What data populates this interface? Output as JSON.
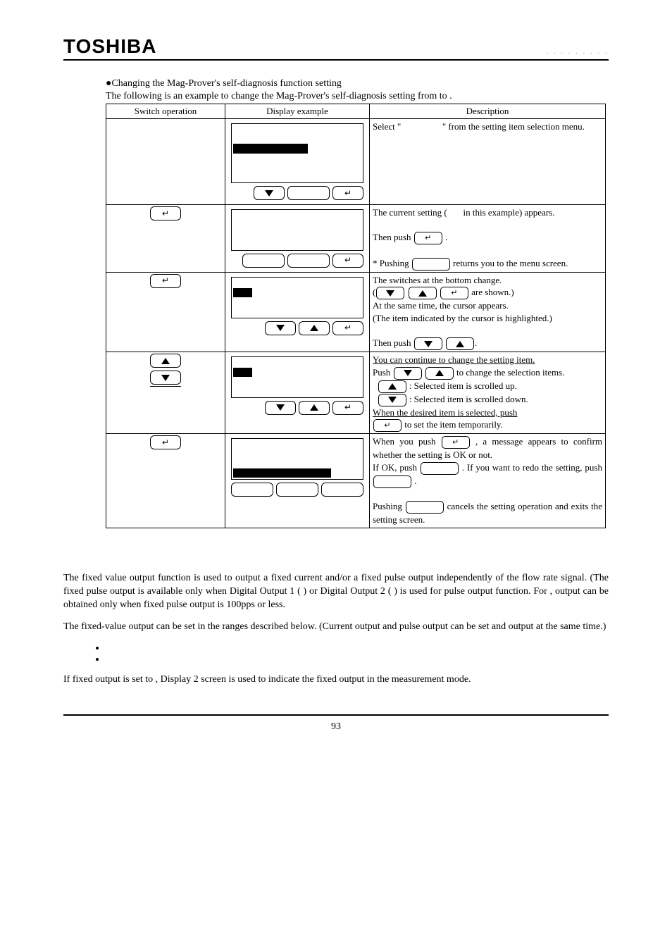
{
  "header": {
    "logo": "TOSHIBA",
    "doc_code": "· · · · · · · · ·"
  },
  "intro": {
    "bullet": "●Changing the Mag-Prover's self-diagnosis function setting",
    "example_line": "The following is an example to change the Mag-Prover's self-diagnosis setting from        to     ."
  },
  "table": {
    "headers": {
      "switch": "Switch operation",
      "display": "Display example",
      "desc": "Description"
    },
    "rows": [
      {
        "desc_parts": {
          "a": "Select \"",
          "b": "\" from the setting item selection menu."
        }
      },
      {
        "desc_parts": {
          "a": "The current setting (",
          "b": " in this example) appears.",
          "c": "Then push ",
          "d": ".",
          "e": "* Pushing ",
          "f": " returns you to the menu screen."
        }
      },
      {
        "desc_parts": {
          "a": "The switches at the bottom change.",
          "b": "are shown.)",
          "c": "At the same time, the cursor appears.",
          "d": "(The item indicated by the cursor is highlighted.)",
          "e": "Then push"
        }
      },
      {
        "desc_parts": {
          "a": "You can continue to change the setting item.",
          "b": "Push",
          "c": "to change the selection items.",
          "d": ": Selected item is scrolled up.",
          "e": ": Selected item is scrolled down.",
          "f": "When the desired item is selected, push",
          "g": " to set the item temporarily."
        }
      },
      {
        "desc_parts": {
          "a": "When you push ",
          "b": ", a message appears to confirm whether the setting is OK or not.",
          "c": "If OK, push ",
          "d": ". If you want to redo the setting, push ",
          "e": ".",
          "f": "Pushing",
          "g": "cancels the setting operation and exits the setting screen."
        }
      }
    ]
  },
  "section": {
    "fixed_output": {
      "p1": "The fixed value output function is used to output a fixed current and/or a fixed pulse output independently of the flow rate signal. (The fixed pulse output is available only when Digital Output 1 (      ) or Digital Output 2 (      ) is used for pulse output function. For       , output can be obtained only when fixed pulse output is 100pps or less.",
      "p2": "The fixed-value output can be set in the ranges described below. (Current output and pulse output can be set and output at the same time.)",
      "p3": "If fixed output is set to     , Display 2 screen is used to indicate the fixed output in the measurement mode."
    }
  },
  "footer": {
    "page_no": "93"
  }
}
